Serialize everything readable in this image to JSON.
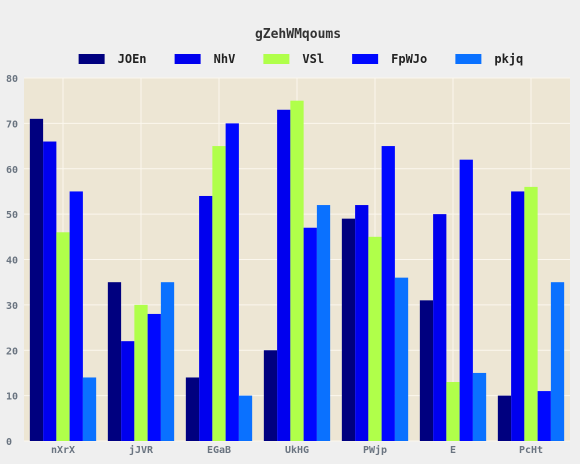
{
  "chart_data": {
    "type": "bar",
    "title": "gZehWMqoums",
    "xlabel": "",
    "ylabel": "",
    "ylim": [
      0,
      80
    ],
    "yticks": [
      0,
      10,
      20,
      30,
      40,
      50,
      60,
      70,
      80
    ],
    "grid": true,
    "legend_position": "top",
    "plot_background": "#ede6d4",
    "grid_color": "#fbf7ee",
    "categories": [
      "nXrX",
      "jJVR",
      "EGaB",
      "UkHG",
      "PWjp",
      "E",
      "PcHt"
    ],
    "series": [
      {
        "name": "JOEn",
        "color": "#00007f",
        "values": [
          71,
          35,
          14,
          20,
          49,
          31,
          10
        ]
      },
      {
        "name": "NhV",
        "color": "#0000ee",
        "values": [
          66,
          22,
          54,
          73,
          52,
          50,
          55
        ]
      },
      {
        "name": "VSl",
        "color": "#b0ff4a",
        "values": [
          46,
          30,
          65,
          75,
          45,
          13,
          56
        ]
      },
      {
        "name": "FpWJo",
        "color": "#0008ff",
        "values": [
          55,
          28,
          70,
          47,
          65,
          62,
          11
        ]
      },
      {
        "name": "pkjq",
        "color": "#0a71ff",
        "values": [
          14,
          35,
          10,
          52,
          36,
          15,
          35
        ]
      }
    ]
  }
}
